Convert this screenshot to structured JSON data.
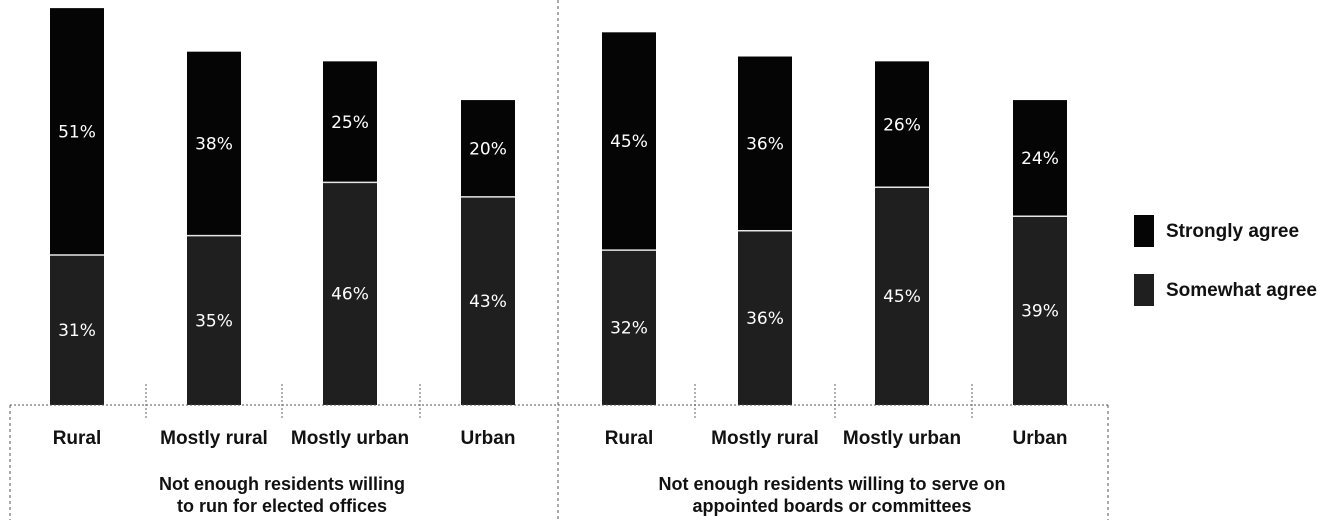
{
  "chart_data": {
    "type": "bar",
    "stacked": true,
    "groups": [
      {
        "label_lines": [
          "Not enough residents willing",
          "to run for elected offices"
        ],
        "categories": [
          "Rural",
          "Mostly rural",
          "Mostly urban",
          "Urban"
        ]
      },
      {
        "label_lines": [
          "Not enough residents willing to serve on",
          "appointed boards or committees"
        ],
        "categories": [
          "Rural",
          "Mostly rural",
          "Mostly urban",
          "Urban"
        ]
      }
    ],
    "series": [
      {
        "name": "Somewhat agree",
        "color": "#1f1f1f",
        "values": [
          31,
          35,
          46,
          43,
          32,
          36,
          45,
          39
        ],
        "labels": [
          "31%",
          "35%",
          "46%",
          "43%",
          "32%",
          "36%",
          "45%",
          "39%"
        ]
      },
      {
        "name": "Strongly agree",
        "color": "#050505",
        "values": [
          51,
          38,
          25,
          20,
          45,
          36,
          26,
          24
        ],
        "labels": [
          "51%",
          "38%",
          "25%",
          "20%",
          "45%",
          "36%",
          "26%",
          "24%"
        ]
      }
    ],
    "ylim": [
      0,
      82
    ],
    "legend_position": "right",
    "grid": false
  }
}
